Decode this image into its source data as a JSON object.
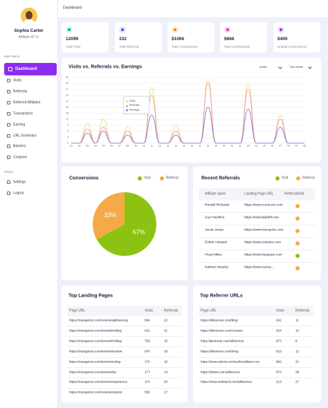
{
  "sidebar": {
    "name": "Sophia Carter",
    "affiliate_id": "Affiliate ID #1",
    "main_menu_label": "Main Menu",
    "menu": [
      "Dashboard",
      "Visits",
      "Referrals",
      "Referred Affiliates",
      "Transactions",
      "Earning",
      "URL Generator",
      "Banners",
      "Coupons"
    ],
    "others_label": "Others",
    "others": [
      "Settings",
      "Logout"
    ]
  },
  "header": {
    "title": "Dashboard"
  },
  "stats": [
    {
      "value": "12099",
      "label": "Total Visits"
    },
    {
      "value": "332",
      "label": "Total Referrals"
    },
    {
      "value": "$1066",
      "label": "Total Commissions"
    },
    {
      "value": "$666",
      "label": "Paid Commissions"
    },
    {
      "value": "$400",
      "label": "Unpaid Commissions"
    }
  ],
  "chart_controls": [
    "Action",
    "This month"
  ],
  "chart_data": [
    {
      "type": "line",
      "title": "Visits vs. Referrals vs. Earnings",
      "categories": [
        "01",
        "02",
        "03",
        "04",
        "05",
        "06",
        "07",
        "08",
        "09",
        "10",
        "11",
        "12",
        "13",
        "14",
        "15",
        "16",
        "17",
        "18",
        "19",
        "20",
        "21",
        "22",
        "23",
        "24",
        "25",
        "26",
        "27",
        "28",
        "29",
        "30"
      ],
      "series": [
        {
          "name": "Visits",
          "color": "#eedf86",
          "values": [
            0,
            0,
            10,
            0,
            12,
            0,
            0,
            8,
            0,
            0,
            28,
            0,
            0,
            9,
            0,
            0,
            0,
            32,
            0,
            0,
            0,
            0,
            30,
            0,
            0,
            0,
            14,
            0,
            0,
            0
          ]
        },
        {
          "name": "Referrals",
          "color": "#ee9e9e",
          "values": [
            0,
            0,
            7,
            0,
            8,
            0,
            0,
            6,
            0,
            0,
            24,
            0,
            0,
            6,
            0,
            0,
            0,
            30,
            0,
            0,
            0,
            0,
            27,
            0,
            0,
            0,
            12,
            0,
            0,
            0
          ]
        },
        {
          "name": "Earnings",
          "color": "#8b80d8",
          "values": [
            0,
            0,
            5,
            0,
            6,
            0,
            0,
            4,
            0,
            0,
            14,
            0,
            0,
            4,
            0,
            0,
            0,
            18,
            0,
            0,
            0,
            0,
            17,
            0,
            0,
            0,
            8,
            0,
            0,
            0
          ]
        }
      ],
      "ylim": [
        0,
        33
      ],
      "yticks": [
        0,
        3,
        6,
        9,
        12,
        15,
        18,
        21,
        24,
        27,
        30,
        33
      ],
      "grid": true
    },
    {
      "type": "pie",
      "title": "Conversions",
      "categories": [
        "Visit",
        "Referral"
      ],
      "values": [
        67,
        33
      ],
      "value_labels": [
        "67%",
        "33%"
      ],
      "colors": [
        "#8cc313",
        "#f6a947"
      ]
    }
  ],
  "recent_referrals": {
    "title": "Recent Referrals",
    "legend": [
      {
        "label": "Visit",
        "color": "#8cc313"
      },
      {
        "label": "Referral",
        "color": "#f6a947"
      }
    ],
    "columns": [
      "Affiliate name",
      "Landing Page URL",
      "Referral/Visit"
    ],
    "rows": [
      {
        "name": "Ronald Richards",
        "url": "https://www.conecom.com",
        "status_color": "#f6a947"
      },
      {
        "name": "Guy Hawkins",
        "url": "https://www.labdrill.com",
        "status_color": "#f6a947"
      },
      {
        "name": "Jacob Jones",
        "url": "https://www.treequote.com",
        "status_color": "#f6a947"
      },
      {
        "name": "Esther Howard",
        "url": "https://www.zotware.com",
        "status_color": "#f6a947"
      },
      {
        "name": "Floyd Miles",
        "url": "https://www.faxquote.com",
        "status_color": "#8cc313"
      },
      {
        "name": "Kathryn Murphy",
        "url": "https://www.canva...",
        "status_color": "#f6a947"
      }
    ]
  },
  "top_landing_pages": {
    "title": "Top Landing Pages",
    "columns": [
      "Page URL",
      "Visits",
      "Referrals"
    ],
    "rows": [
      [
        "https://orangetour.com/review/sightseeing",
        "994",
        "22"
      ],
      [
        "https://orangetour.com/review/holiday",
        "922",
        "31"
      ],
      [
        "https://orangetour.com/review/holiday",
        "703",
        "16"
      ],
      [
        "https://orangetour.com/review/tourism",
        "978",
        "28"
      ],
      [
        "https://orangetour.com/review/outing",
        "176",
        "10"
      ],
      [
        "https://orangetour.com/review/trip",
        "177",
        "14"
      ],
      [
        "https://orangetour.com/review/experience",
        "174",
        "20"
      ],
      [
        "https://orangetour.com/review/explore",
        "556",
        "17"
      ]
    ]
  },
  "top_referrer_urls": {
    "title": "Top Referrer URLs",
    "columns": [
      "Page URL",
      "Visits",
      "Referrals"
    ],
    "rows": [
      [
        "https://allisonroe.com/blog",
        "542",
        "11"
      ],
      [
        "https://allisonroe.com/courses",
        "518",
        "14"
      ],
      [
        "https://pinterest.com/allisonroe",
        "473",
        "8"
      ],
      [
        "https://allisonroe.com/shop",
        "623",
        "12"
      ],
      [
        "https://www.udemy.com/author/allison-roe",
        "862",
        "21"
      ],
      [
        "https://twitter.com/allisonroe",
        "873",
        "28"
      ],
      [
        "https://www.substack.com/allisonroe",
        "213",
        "27"
      ]
    ]
  }
}
